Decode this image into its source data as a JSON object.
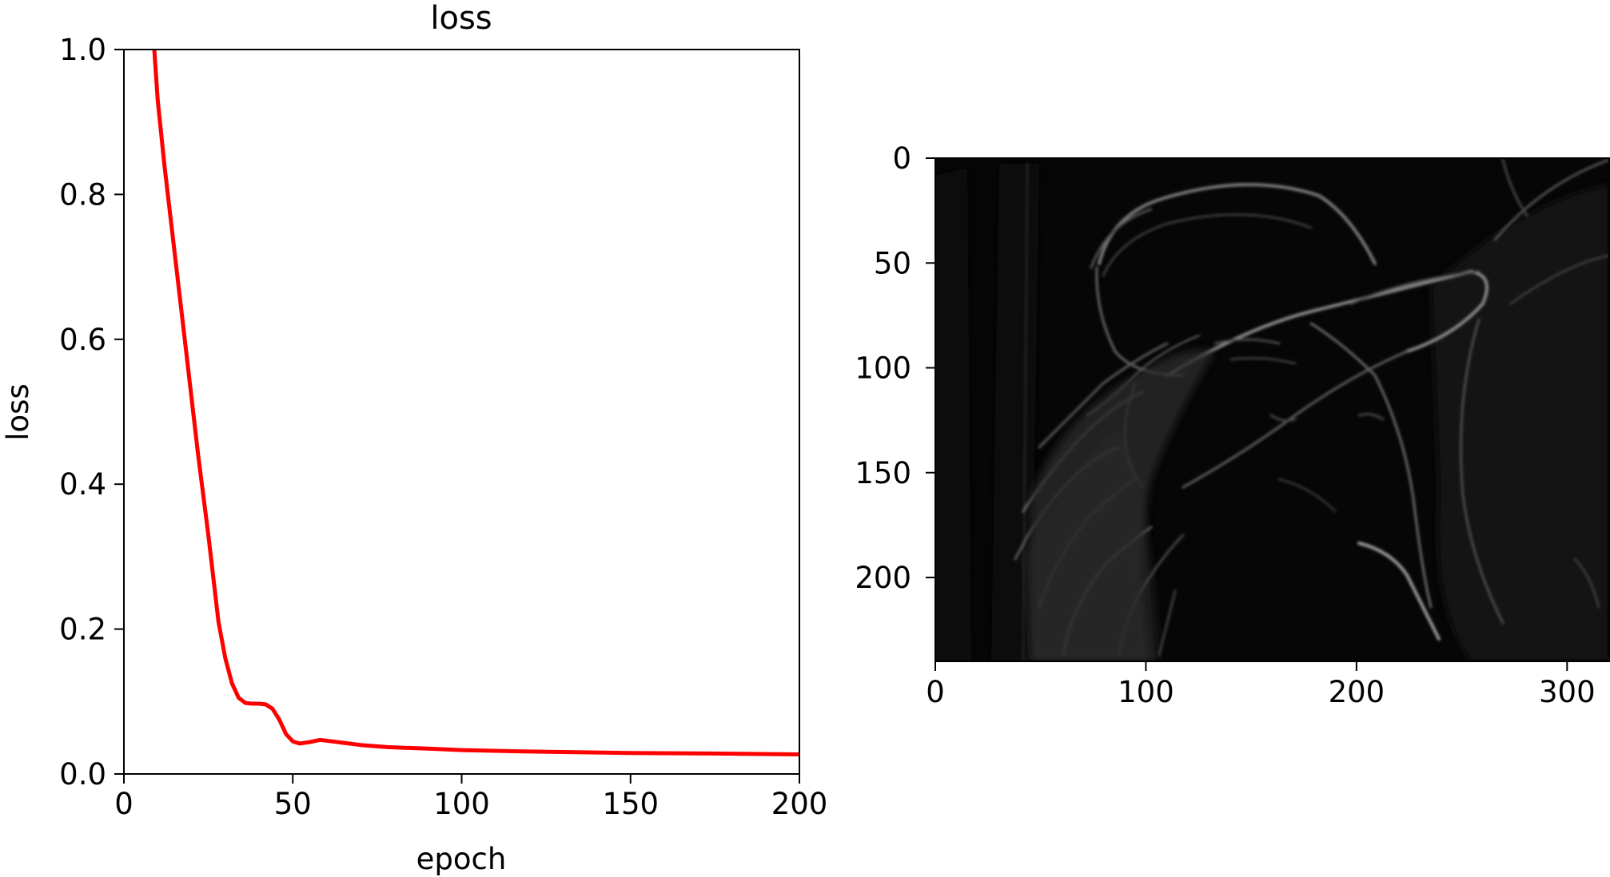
{
  "chart_data": [
    {
      "type": "line",
      "title": "loss",
      "xlabel": "epoch",
      "ylabel": "loss",
      "xlim": [
        0,
        200
      ],
      "ylim": [
        0,
        1.0
      ],
      "xticks": [
        "0",
        "50",
        "100",
        "150",
        "200"
      ],
      "yticks": [
        "0.0",
        "0.2",
        "0.4",
        "0.6",
        "0.8",
        "1.0"
      ],
      "grid": false,
      "series": [
        {
          "color": "#ff0000",
          "x": [
            9,
            10,
            12,
            15,
            18,
            20,
            22,
            25,
            28,
            30,
            32,
            34,
            36,
            38,
            40,
            42,
            44,
            46,
            48,
            50,
            52,
            55,
            58,
            60,
            65,
            70,
            78,
            90,
            100,
            120,
            150,
            180,
            200
          ],
          "y": [
            1.0,
            0.93,
            0.84,
            0.72,
            0.6,
            0.52,
            0.44,
            0.33,
            0.21,
            0.16,
            0.125,
            0.105,
            0.098,
            0.097,
            0.097,
            0.096,
            0.09,
            0.075,
            0.055,
            0.045,
            0.042,
            0.044,
            0.047,
            0.046,
            0.043,
            0.04,
            0.037,
            0.035,
            0.033,
            0.031,
            0.029,
            0.028,
            0.027
          ]
        }
      ]
    },
    {
      "type": "heatmap",
      "description_kind": "grayscale edge-detected image",
      "xlim": [
        0,
        320
      ],
      "ylim": [
        240,
        0
      ],
      "xticks": [
        "0",
        "100",
        "200",
        "300"
      ],
      "yticks": [
        "0",
        "50",
        "100",
        "150",
        "200"
      ],
      "colormap": "gray"
    }
  ]
}
